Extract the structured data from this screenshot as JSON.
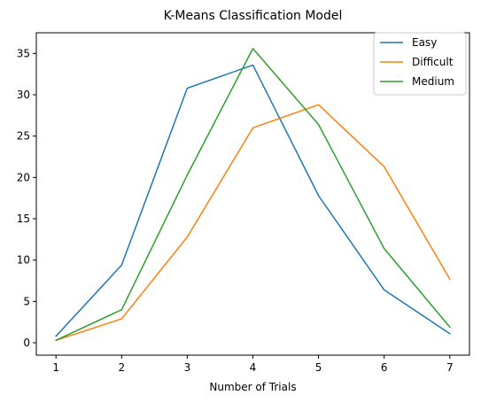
{
  "chart_data": {
    "type": "line",
    "title": "K-Means Classification Model",
    "xlabel": "Number of Trials",
    "ylabel": "",
    "x": [
      1,
      2,
      3,
      4,
      5,
      6,
      7
    ],
    "xticks": [
      1,
      2,
      3,
      4,
      5,
      6,
      7
    ],
    "yticks": [
      0,
      5,
      10,
      15,
      20,
      25,
      30,
      35
    ],
    "xlim": [
      0.7,
      7.3
    ],
    "ylim": [
      -1.5,
      37.5
    ],
    "grid": false,
    "legend_position": "top-right",
    "series": [
      {
        "name": "Easy",
        "color": "#1f77b4",
        "values": [
          0.8,
          9.4,
          30.8,
          33.6,
          17.8,
          6.4,
          1.1
        ]
      },
      {
        "name": "Difficult",
        "color": "#ff7f0e",
        "values": [
          0.3,
          2.9,
          12.8,
          26.0,
          28.8,
          21.3,
          7.7
        ]
      },
      {
        "name": "Medium",
        "color": "#2ca02c",
        "values": [
          0.3,
          4.0,
          20.3,
          35.6,
          26.4,
          11.4,
          1.9
        ]
      }
    ]
  }
}
